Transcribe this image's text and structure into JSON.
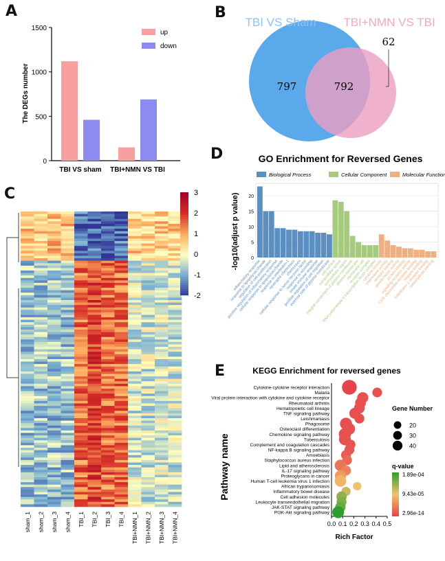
{
  "panel_labels": {
    "a": "A",
    "b": "B",
    "c": "C",
    "d": "D",
    "e": "E"
  },
  "colors": {
    "up": "#f8a0a0",
    "down": "#8c8cf0",
    "venn_left": "#5aa9ea",
    "venn_right": "#ec9ec0",
    "venn_overlap": "#b487c4",
    "bp": "#5b8fc2",
    "cc": "#a7cb7e",
    "mf": "#efb081",
    "heat_low": "#313695",
    "heat_mid": "#ffffbf",
    "heat_high": "#a50026",
    "q_low": "#e8424b",
    "q_mid": "#f2c26b",
    "q_high": "#2ca02c"
  },
  "chart_data": [
    {
      "id": "A",
      "type": "bar",
      "ylabel": "The DEGs number",
      "categories": [
        "TBI VS sham",
        "TBI+NMN VS TBI"
      ],
      "ylim": [
        0,
        1500
      ],
      "yticks": [
        "0",
        "500",
        "1000",
        "1500"
      ],
      "series": [
        {
          "name": "up",
          "values": [
            1120,
            150
          ]
        },
        {
          "name": "down",
          "values": [
            460,
            690
          ]
        }
      ]
    },
    {
      "id": "B",
      "type": "venn",
      "sets": [
        "TBI VS Sham",
        "TBI+NMN VS TBI"
      ],
      "counts": {
        "left_only": "797",
        "overlap": "792",
        "right_only": "62"
      }
    },
    {
      "id": "C",
      "type": "heatmap",
      "columns": [
        "sham_1",
        "sham_2",
        "sham_3",
        "sham_4",
        "TBI_1",
        "TBI_2",
        "TBI_3",
        "TBI_4",
        "TBI+NMN_1",
        "TBI+NMN_2",
        "TBI+NMN_3",
        "TBI+NMN_4"
      ],
      "colorbar": {
        "min": -2,
        "max": 3,
        "ticks": [
          "3",
          "2",
          "1",
          "0",
          "-1",
          "-2"
        ]
      }
    },
    {
      "id": "D",
      "type": "bar",
      "title": "GO Enrichment for Reversed Genes",
      "ylabel": "-log10(adjust p value)",
      "yticks": [
        "0",
        "5",
        "10",
        "15",
        "20"
      ],
      "ylim": [
        0,
        24
      ],
      "legend": [
        "Biological Process",
        "Cellular Component",
        "Molecular Function"
      ],
      "groups": [
        {
          "name": "Biological Process",
          "values": [
            23,
            15,
            15,
            9.5,
            9.5,
            9,
            9,
            8.5,
            8.5,
            8.5,
            8,
            8,
            7.5
          ]
        },
        {
          "name": "Cellular Component",
          "values": [
            18.5,
            18,
            15,
            7,
            5,
            4,
            4,
            4
          ]
        },
        {
          "name": "Molecular Function",
          "values": [
            7.5,
            5.5,
            4,
            3.5,
            3,
            3,
            2.5,
            2.5,
            2,
            2
          ]
        }
      ],
      "xticklabels_bp": [
        "inflammatory response",
        "response to lipopolysaccharide",
        "regulation of cell proliferation",
        "positive regulation of inflammatory response",
        "cellular response to lipopolysaccharide",
        "response to interleukin-1",
        "neutrophil chemotaxis",
        "chemotaxis",
        "cellular response to tumor necrosis factor",
        "response to wounding",
        "innate immune response",
        "positive regulation of cell migration",
        "external side of plasma membrane"
      ],
      "xticklabels_cc": [
        "cell surface",
        "extracellular space",
        "extracellular region",
        "integral component of plasma membrane",
        "plasma membrane",
        "membrane raft",
        "receptor complex",
        "RNA polymerase II transcription factor complex"
      ],
      "xticklabels_mf": [
        "cytokine activity",
        "chemokine activity",
        "receptor binding",
        "growth factor activity",
        "protein binding",
        "signaling receptor activity",
        "CCR chemokine receptor binding",
        "heparin binding",
        "interleukin-1 receptor binding",
        "carbohydrate binding"
      ]
    },
    {
      "id": "E",
      "type": "scatter",
      "title": "KEGG Enrichment for reversed genes",
      "xlabel": "Rich Factor",
      "ylabel": "Pathway name",
      "xlim": [
        0,
        0.5
      ],
      "xticks": [
        "0.0",
        "0.1",
        "0.2",
        "0.3",
        "0.4",
        "0.5"
      ],
      "size_legend_title": "Gene Number",
      "size_legend": [
        "20",
        "30",
        "40"
      ],
      "color_legend_title": "q-value",
      "color_legend": [
        "1.89e-04",
        "9.43e-05",
        "2.96e-14"
      ],
      "pathways": [
        {
          "name": "Cytokine-cytokine receptor interaction",
          "x": 0.16,
          "size": 45,
          "q": 0.0
        },
        {
          "name": "Malaria",
          "x": 0.41,
          "size": 15,
          "q": 0.05
        },
        {
          "name": "Viral protein interaction with cytokine and cytokine receptor",
          "x": 0.28,
          "size": 22,
          "q": 0.05
        },
        {
          "name": "Rheumatoid arthritis",
          "x": 0.26,
          "size": 20,
          "q": 0.05
        },
        {
          "name": "Hematopoietic cell lineage",
          "x": 0.25,
          "size": 20,
          "q": 0.05
        },
        {
          "name": "TNF signaling pathway",
          "x": 0.21,
          "size": 22,
          "q": 0.05
        },
        {
          "name": "Leishmaniasis",
          "x": 0.25,
          "size": 16,
          "q": 0.05
        },
        {
          "name": "Phagosome",
          "x": 0.13,
          "size": 27,
          "q": 0.05
        },
        {
          "name": "Osteoclast differentiation",
          "x": 0.16,
          "size": 24,
          "q": 0.06
        },
        {
          "name": "Chemokine signaling pathway",
          "x": 0.12,
          "size": 28,
          "q": 0.06
        },
        {
          "name": "Tuberculosis",
          "x": 0.12,
          "size": 26,
          "q": 0.06
        },
        {
          "name": "Complement and coagulation cascades",
          "x": 0.17,
          "size": 16,
          "q": 0.07
        },
        {
          "name": "NF-kappa B signaling pathway",
          "x": 0.16,
          "size": 16,
          "q": 0.08
        },
        {
          "name": "Amoebiasis",
          "x": 0.13,
          "size": 16,
          "q": 0.1
        },
        {
          "name": "Staphylococcus aureus infection",
          "x": 0.14,
          "size": 15,
          "q": 0.15
        },
        {
          "name": "Lipid and atherosclerosis",
          "x": 0.08,
          "size": 24,
          "q": 0.2
        },
        {
          "name": "IL-17 signaling pathway",
          "x": 0.13,
          "size": 16,
          "q": 0.25
        },
        {
          "name": "Proteoglycans in cancer",
          "x": 0.08,
          "size": 22,
          "q": 0.35
        },
        {
          "name": "Human T-cell leukemia virus 1 infection",
          "x": 0.08,
          "size": 24,
          "q": 0.45
        },
        {
          "name": "African trypanosomiasis",
          "x": 0.23,
          "size": 10,
          "q": 0.5
        },
        {
          "name": "Inflammatory bowel disease",
          "x": 0.13,
          "size": 13,
          "q": 0.6
        },
        {
          "name": "Cell adhesion molecules",
          "x": 0.09,
          "size": 18,
          "q": 0.75
        },
        {
          "name": "Leukocyte transendothelial migration",
          "x": 0.09,
          "size": 16,
          "q": 0.8
        },
        {
          "name": "JAK-STAT signaling pathway",
          "x": 0.08,
          "size": 18,
          "q": 0.85
        },
        {
          "name": "PI3K-Akt signaling pathway",
          "x": 0.06,
          "size": 26,
          "q": 1.0
        }
      ]
    }
  ]
}
